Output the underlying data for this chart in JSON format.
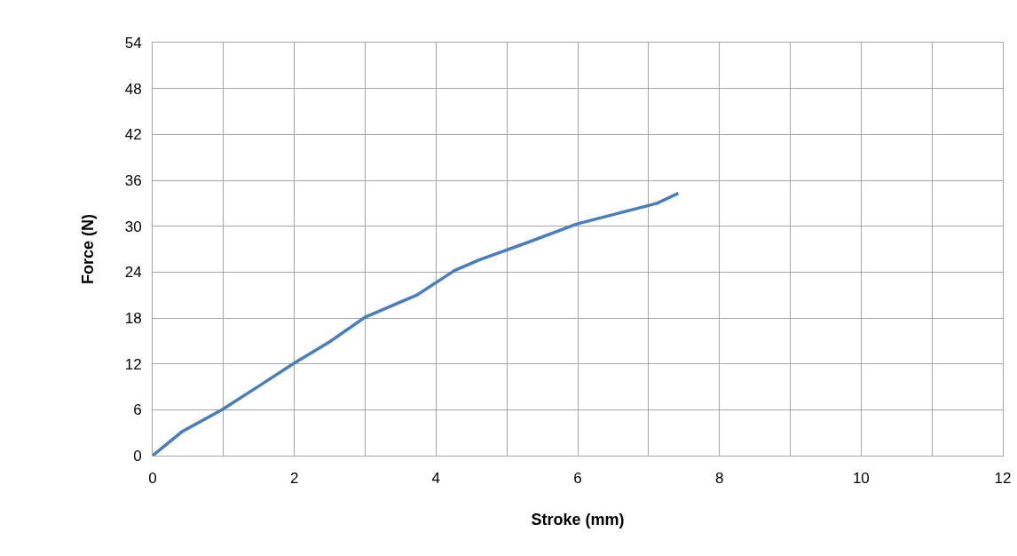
{
  "chart_data": {
    "type": "line",
    "xlabel": "Stroke (mm)",
    "ylabel": "Force (N)",
    "x": [
      0,
      0.41,
      0.98,
      1.5,
      1.98,
      2.5,
      3.0,
      3.73,
      4.26,
      4.61,
      5.3,
      5.99,
      7.12,
      7.42
    ],
    "series": [
      {
        "color": "#4a7ebb",
        "values": [
          0,
          3.1,
          6.0,
          9.1,
          12,
          14.9,
          18.1,
          21,
          24.2,
          25.6,
          27.9,
          30.3,
          33,
          34.3
        ]
      }
    ],
    "xlim": [
      0,
      12
    ],
    "xticks": [
      0,
      {
        "value": 1,
        "label": null
      },
      2,
      {
        "value": 3,
        "label": null
      },
      4,
      {
        "value": 5,
        "label": null
      },
      6,
      {
        "value": 7,
        "label": null
      },
      8,
      {
        "value": 9,
        "label": null
      },
      10,
      {
        "value": 11,
        "label": null
      },
      12
    ],
    "ylim": [
      0,
      54
    ],
    "yticks": [
      0,
      6,
      12,
      18,
      24,
      30,
      36,
      42,
      48,
      54
    ],
    "grid": true,
    "marker": "none",
    "line_style": "solid"
  }
}
